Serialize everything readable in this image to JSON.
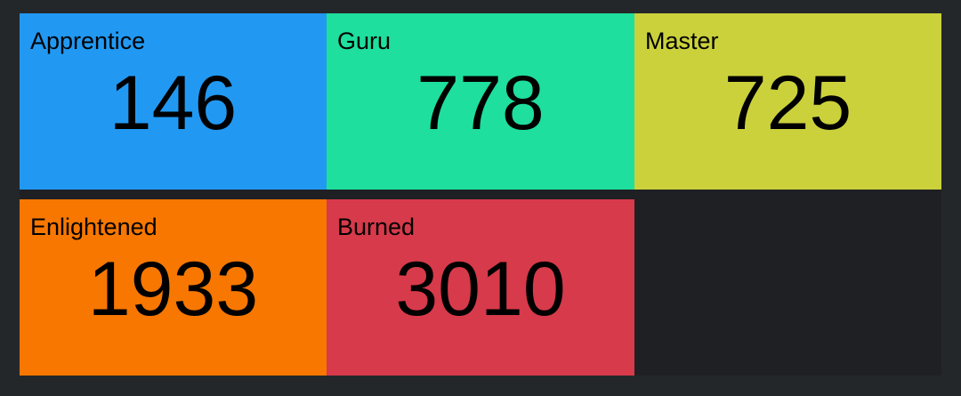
{
  "tiles": [
    {
      "label": "Apprentice",
      "value": "146",
      "color": "#2199f3"
    },
    {
      "label": "Guru",
      "value": "778",
      "color": "#1edf9d"
    },
    {
      "label": "Master",
      "value": "725",
      "color": "#cbd13b"
    },
    {
      "label": "Enlightened",
      "value": "1933",
      "color": "#f77700"
    },
    {
      "label": "Burned",
      "value": "3010",
      "color": "#d73a4a"
    }
  ]
}
